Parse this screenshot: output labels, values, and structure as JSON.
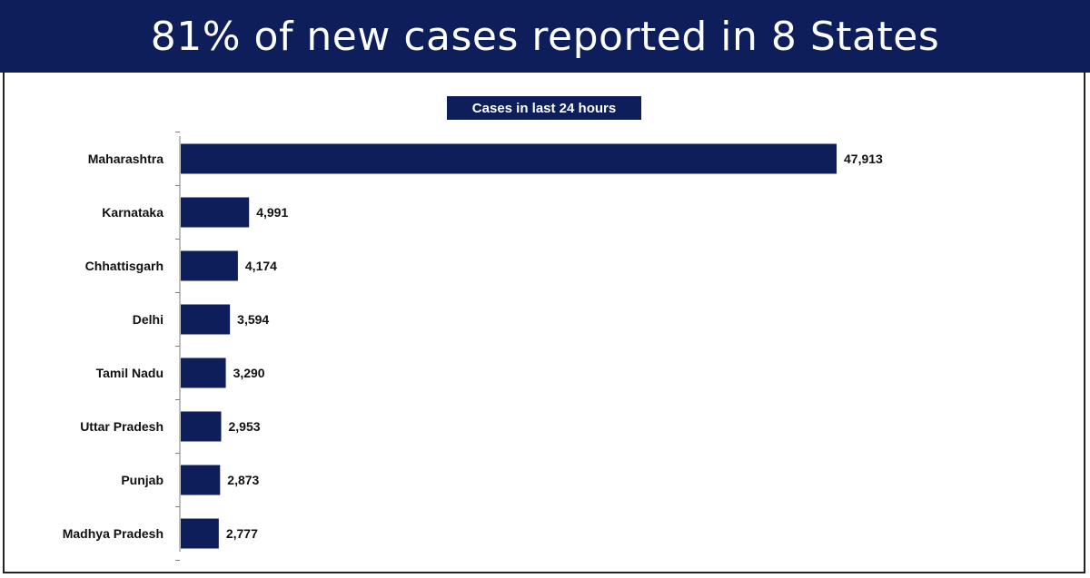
{
  "header": {
    "title": "81% of new cases reported in 8 States"
  },
  "colors": {
    "banner": "#0e1e5b",
    "bar": "#0e1e5b"
  },
  "chart_data": {
    "type": "bar",
    "orientation": "horizontal",
    "title": "Cases in last 24 hours",
    "categories": [
      "Maharashtra",
      "Karnataka",
      "Chhattisgarh",
      "Delhi",
      "Tamil Nadu",
      "Uttar Pradesh",
      "Punjab",
      "Madhya Pradesh"
    ],
    "values": [
      47913,
      4991,
      4174,
      3594,
      3290,
      2953,
      2873,
      2777
    ],
    "value_labels": [
      "47,913",
      "4,991",
      "4,174",
      "3,594",
      "3,290",
      "2,953",
      "2,873",
      "2,777"
    ],
    "xlabel": "",
    "ylabel": "",
    "xlim": [
      0,
      47913
    ],
    "grid": false,
    "legend": "none"
  }
}
